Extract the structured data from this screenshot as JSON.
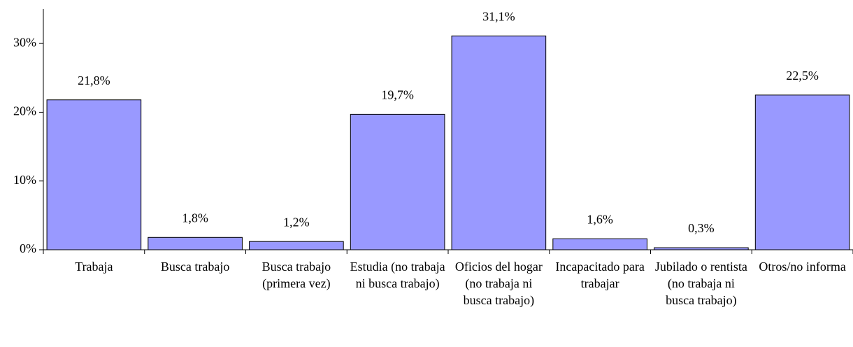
{
  "chart_data": {
    "type": "bar",
    "categories": [
      "Trabaja",
      "Busca trabajo",
      "Busca trabajo (primera vez)",
      "Estudia (no trabaja ni busca trabajo)",
      "Oficios del hogar (no trabaja ni busca trabajo)",
      "Incapacitado para trabajar",
      "Jubilado o rentista (no trabaja ni busca trabajo)",
      "Otros/no informa"
    ],
    "values": [
      21.8,
      1.8,
      1.2,
      19.7,
      31.1,
      1.6,
      0.3,
      22.5
    ],
    "value_labels": [
      "21,8%",
      "1,8%",
      "1,2%",
      "19,7%",
      "31,1%",
      "1,6%",
      "0,3%",
      "22,5%"
    ],
    "color": "#9999ff",
    "ylim": [
      0,
      35
    ],
    "yticks": [
      {
        "value": 0,
        "label": "0%"
      },
      {
        "value": 10,
        "label": "10%"
      },
      {
        "value": 20,
        "label": "20%"
      },
      {
        "value": 30,
        "label": "30%"
      }
    ]
  }
}
